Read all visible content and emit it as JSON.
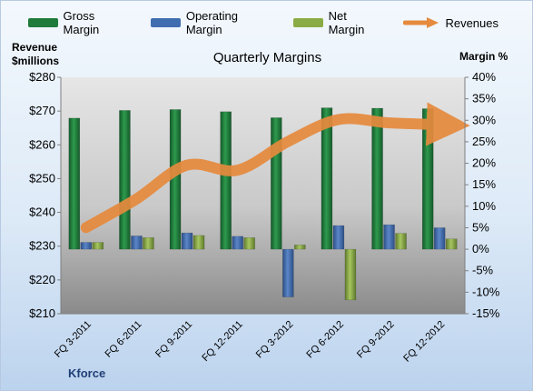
{
  "chart_data": {
    "type": "bar",
    "title": "Quarterly Margins",
    "categories": [
      "FQ 3-2011",
      "FQ 6-2011",
      "FQ 9-2011",
      "FQ 12-2011",
      "FQ 3-2012",
      "FQ 6-2012",
      "FQ 9-2012",
      "FQ 12-2012"
    ],
    "series": [
      {
        "name": "Gross Margin",
        "type": "bar",
        "axis": "right",
        "color": "#1e7b3a",
        "values": [
          30.5,
          32.3,
          32.5,
          32.0,
          30.6,
          32.9,
          32.8,
          32.7
        ]
      },
      {
        "name": "Operating Margin",
        "type": "bar",
        "axis": "right",
        "color": "#3f6db0",
        "values": [
          1.6,
          3.1,
          3.8,
          3.0,
          -11.1,
          5.5,
          5.7,
          5.0
        ]
      },
      {
        "name": "Net Margin",
        "type": "bar",
        "axis": "right",
        "color": "#8aab45",
        "values": [
          1.6,
          2.7,
          3.2,
          2.7,
          1.0,
          -11.8,
          3.7,
          2.4
        ]
      },
      {
        "name": "Revenues",
        "type": "line",
        "axis": "left",
        "color": "#e68a3d",
        "values": [
          235.5,
          244,
          254,
          252.5,
          261,
          267.5,
          266.5,
          266.0
        ]
      }
    ],
    "y_left": {
      "label_line1": "Revenue",
      "label_line2": "$millions",
      "min": 210,
      "max": 280,
      "step": 10,
      "tick_format": "$"
    },
    "y_right": {
      "label": "Margin %",
      "min": -15,
      "max": 40,
      "step": 5,
      "tick_format": "%"
    },
    "legend_position": "top",
    "grid": false,
    "footer": "Kforce"
  }
}
